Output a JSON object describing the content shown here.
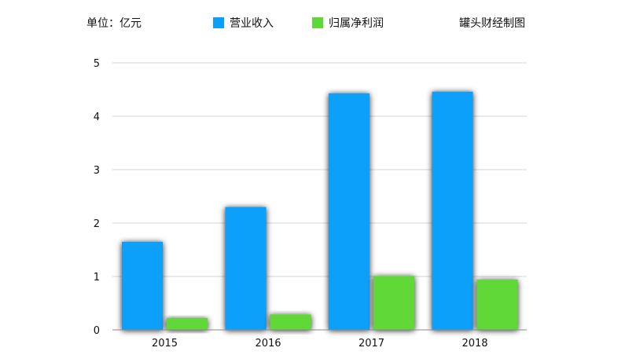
{
  "chart_data": {
    "type": "bar",
    "unit_label": "单位：亿元",
    "source_label": "罐头财经制图",
    "categories": [
      "2015",
      "2016",
      "2017",
      "2018"
    ],
    "series": [
      {
        "name": "营业收入",
        "color": "#0aa0fa",
        "values": [
          1.65,
          2.3,
          4.43,
          4.46
        ]
      },
      {
        "name": "归属净利润",
        "color": "#5ed838",
        "values": [
          0.22,
          0.29,
          1.01,
          0.94
        ]
      }
    ],
    "ylim": [
      0,
      5
    ],
    "yticks": [
      "0",
      "1",
      "2",
      "3",
      "4",
      "5"
    ],
    "grid": true,
    "legend_position": "top"
  }
}
